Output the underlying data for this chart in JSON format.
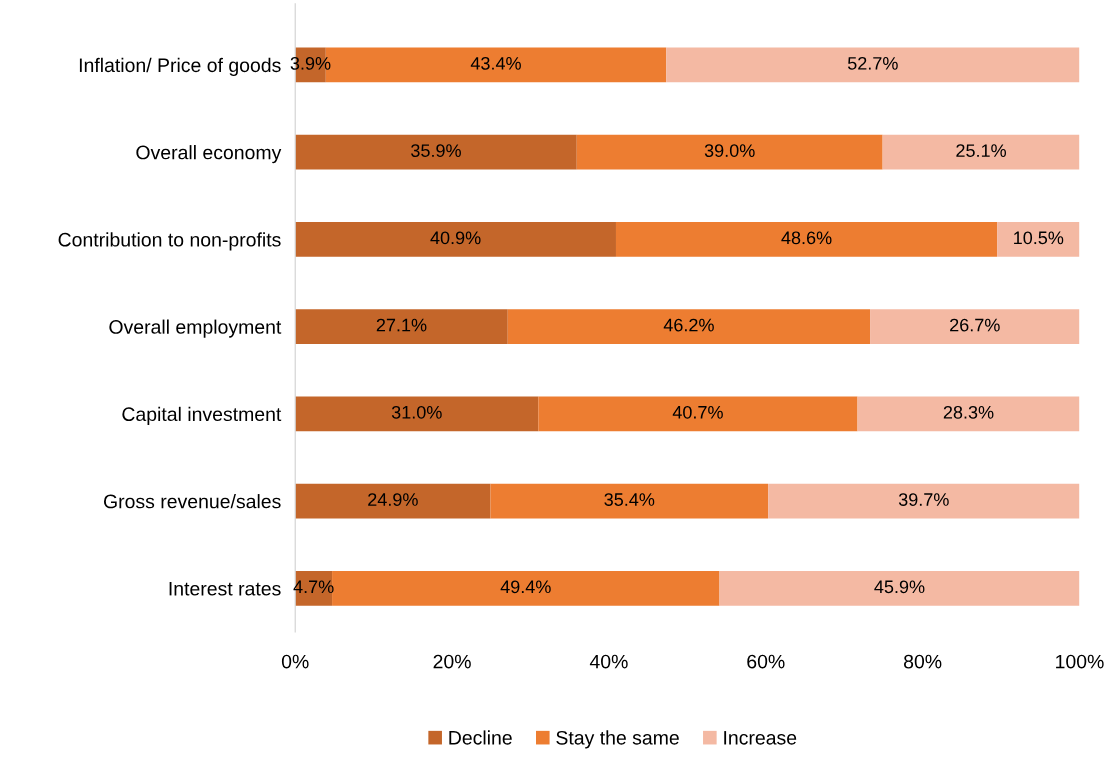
{
  "chart_data": {
    "type": "bar",
    "orientation": "horizontal",
    "stacked": true,
    "categories": [
      "Inflation/ Price of goods",
      "Overall economy",
      "Contribution to non-profits",
      "Overall employment",
      "Capital investment",
      "Gross revenue/sales",
      "Interest rates"
    ],
    "series": [
      {
        "name": "Decline",
        "color": "#c4662a",
        "values": [
          3.9,
          35.9,
          40.9,
          27.1,
          31.0,
          24.9,
          4.7
        ],
        "value_labels": [
          "3.9%",
          "35.9%",
          "40.9%",
          "27.1%",
          "31.0%",
          "24.9%",
          "4.7%"
        ]
      },
      {
        "name": "Stay the same",
        "color": "#ed7d31",
        "values": [
          43.4,
          39.0,
          48.6,
          46.2,
          40.7,
          35.4,
          49.4
        ],
        "value_labels": [
          "43.4%",
          "39.0%",
          "48.6%",
          "46.2%",
          "40.7%",
          "35.4%",
          "49.4%"
        ]
      },
      {
        "name": "Increase",
        "color": "#f4b9a3",
        "values": [
          52.7,
          25.1,
          10.5,
          26.7,
          28.3,
          39.7,
          45.9
        ],
        "value_labels": [
          "52.7%",
          "25.1%",
          "10.5%",
          "26.7%",
          "28.3%",
          "39.7%",
          "45.9%"
        ]
      }
    ],
    "xlim": [
      0,
      100
    ],
    "xticks": [
      {
        "value": 0,
        "label": "0%"
      },
      {
        "value": 20,
        "label": "20%"
      },
      {
        "value": 40,
        "label": "40%"
      },
      {
        "value": 60,
        "label": "60%"
      },
      {
        "value": 80,
        "label": "80%"
      },
      {
        "value": 100,
        "label": "100%"
      }
    ],
    "grid": false,
    "legend": "bottom"
  }
}
